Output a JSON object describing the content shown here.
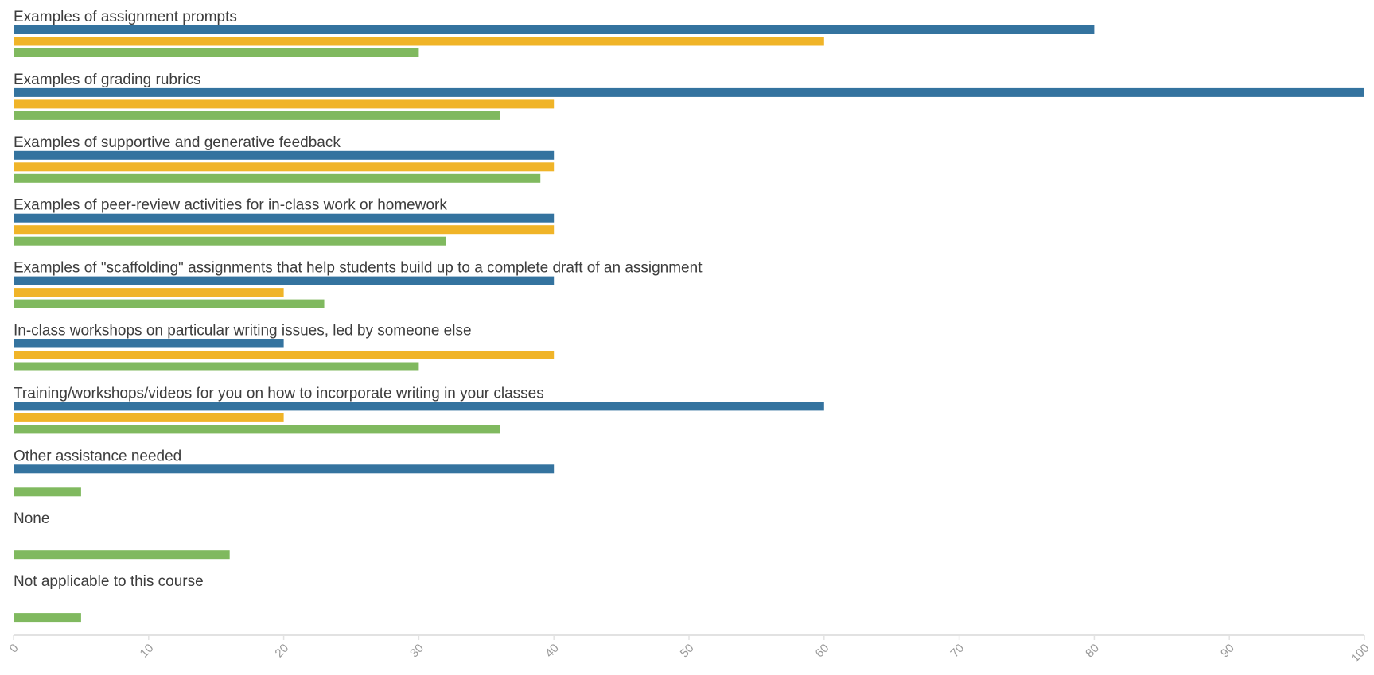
{
  "chart_data": {
    "type": "bar",
    "orientation": "horizontal",
    "categories": [
      "Examples of assignment prompts",
      "Examples of grading rubrics",
      "Examples of supportive and generative feedback",
      "Examples of peer-review activities for in-class work or homework",
      "Examples of \"scaffolding\" assignments that help students build up to a complete draft of an assignment",
      "In-class workshops on particular writing issues, led by someone else",
      "Training/workshops/videos for you on how to incorporate writing in your classes",
      "Other assistance needed",
      "None",
      "Not applicable to this course"
    ],
    "series": [
      {
        "color": "#34739f",
        "values": [
          80,
          100,
          40,
          40,
          40,
          20,
          60,
          40,
          null,
          null
        ]
      },
      {
        "color": "#f0b428",
        "values": [
          60,
          40,
          40,
          40,
          20,
          40,
          20,
          null,
          null,
          null
        ]
      },
      {
        "color": "#80b95f",
        "values": [
          30,
          36,
          39,
          32,
          23,
          30,
          36,
          5,
          16,
          5
        ]
      }
    ],
    "xlim": [
      0,
      100
    ],
    "xticks": [
      0,
      10,
      20,
      30,
      40,
      50,
      60,
      70,
      80,
      90,
      100
    ],
    "title": "",
    "xlabel": "",
    "ylabel": "",
    "grid": false,
    "legend": "none"
  }
}
